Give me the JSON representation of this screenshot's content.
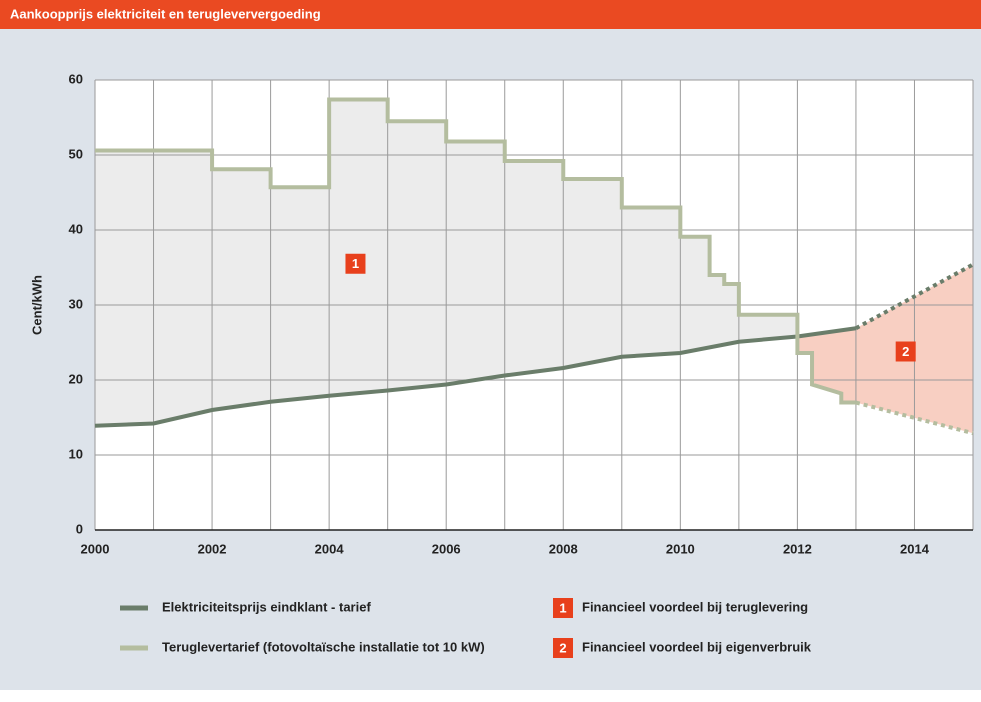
{
  "chart_data": {
    "type": "line",
    "title": "Aankoopprijs elektriciteit en terugleververgoeding",
    "y_label": "Cent/kWh",
    "xlim": [
      2000,
      2015
    ],
    "ylim": [
      0,
      60
    ],
    "xticks": [
      2000,
      2002,
      2004,
      2006,
      2008,
      2010,
      2012,
      2014
    ],
    "yticks": [
      0,
      10,
      20,
      30,
      40,
      50,
      60
    ],
    "xgrid": [
      2000,
      2001,
      2002,
      2003,
      2004,
      2005,
      2006,
      2007,
      2008,
      2009,
      2010,
      2011,
      2012,
      2013,
      2014,
      2015
    ],
    "grid": true,
    "series": [
      {
        "name": "Elektriciteitsprijs eindklant - tarief",
        "color": "#6a7d6a",
        "x": [
          2000,
          2001,
          2002,
          2003,
          2004,
          2005,
          2006,
          2007,
          2008,
          2009,
          2010,
          2011,
          2012,
          2013
        ],
        "values": [
          13.9,
          14.2,
          16.0,
          17.1,
          17.9,
          18.6,
          19.4,
          20.6,
          21.6,
          23.1,
          23.6,
          25.1,
          25.8,
          26.9
        ],
        "projection": {
          "x": [
            2013,
            2015
          ],
          "values": [
            26.9,
            35.4
          ]
        }
      },
      {
        "name": "Teruglevertarief (fotovoltaïsche installatie tot 10 kW)",
        "color": "#b4bd9f",
        "x": [
          2000,
          2002,
          2002,
          2003,
          2003,
          2004,
          2004,
          2005,
          2005,
          2006,
          2006,
          2007,
          2007,
          2008,
          2008,
          2009,
          2009,
          2010,
          2010,
          2010.5,
          2010.5,
          2010.75,
          2010.75,
          2011,
          2011,
          2012,
          2012,
          2012.25,
          2012.25,
          2012.75,
          2012.75,
          2013
        ],
        "values": [
          50.6,
          50.6,
          48.1,
          48.1,
          45.7,
          45.7,
          57.4,
          57.4,
          54.5,
          54.5,
          51.8,
          51.8,
          49.2,
          49.2,
          46.8,
          46.8,
          43.0,
          43.0,
          39.1,
          39.1,
          34.0,
          34.0,
          32.8,
          32.8,
          28.7,
          28.7,
          23.6,
          23.6,
          19.4,
          18.2,
          17.0,
          17.0
        ],
        "projection": {
          "x": [
            2013,
            2015
          ],
          "values": [
            17.0,
            12.9
          ]
        }
      }
    ],
    "annotations": [
      {
        "label": "1",
        "text": "Financieel voordeel bij teruglevering",
        "color": "#e8401c",
        "fill": "#ececec",
        "x": 2004.45,
        "y": 35.5
      },
      {
        "label": "2",
        "text": "Financieel voordeel bij eigenverbruik",
        "color": "#e8401c",
        "fill": "#f8cfc2",
        "x": 2013.85,
        "y": 23.8
      }
    ]
  }
}
